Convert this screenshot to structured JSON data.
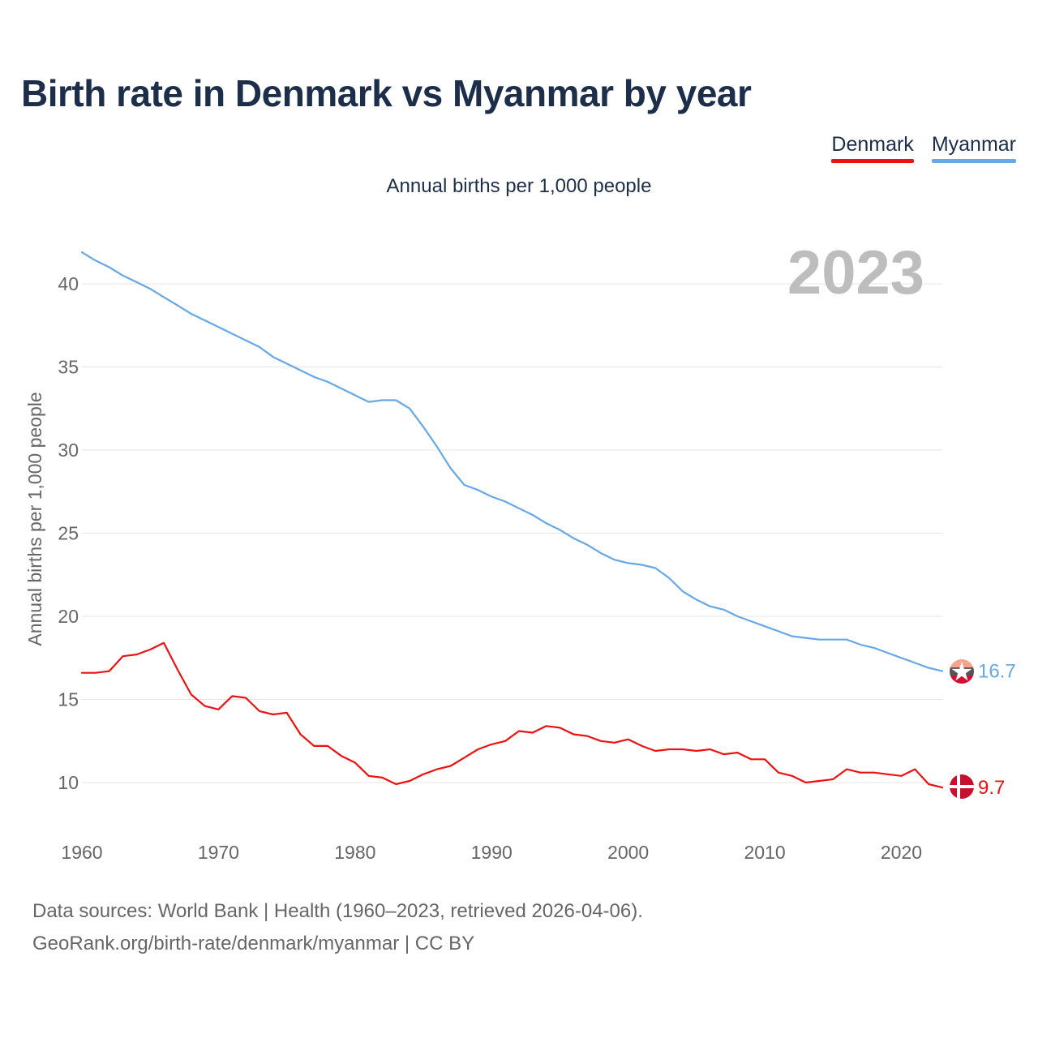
{
  "title": "Birth rate in Denmark vs Myanmar by year",
  "subtitle": "Annual births per 1,000 people",
  "legend": [
    {
      "label": "Denmark",
      "color": "#ee1111"
    },
    {
      "label": "Myanmar",
      "color": "#66a8e8"
    }
  ],
  "footer": {
    "line1": "Data sources: World Bank | Health (1960–2023, retrieved 2026-04-06).",
    "line2": "GeoRank.org/birth-rate/denmark/myanmar | CC BY"
  },
  "chart_data": {
    "type": "line",
    "title": "Birth rate in Denmark vs Myanmar by year",
    "subtitle": "Annual births per 1,000 people",
    "xlabel": "",
    "ylabel": "Annual births per 1,000 people",
    "current_year_label": "2023",
    "xlim": [
      1960,
      2023
    ],
    "ylim": [
      7.5,
      43
    ],
    "x_ticks": [
      1960,
      1970,
      1980,
      1990,
      2000,
      2010,
      2020
    ],
    "y_ticks": [
      10,
      15,
      20,
      25,
      30,
      35,
      40
    ],
    "grid": true,
    "legend_position": "top-right",
    "x": [
      1960,
      1961,
      1962,
      1963,
      1964,
      1965,
      1966,
      1967,
      1968,
      1969,
      1970,
      1971,
      1972,
      1973,
      1974,
      1975,
      1976,
      1977,
      1978,
      1979,
      1980,
      1981,
      1982,
      1983,
      1984,
      1985,
      1986,
      1987,
      1988,
      1989,
      1990,
      1991,
      1992,
      1993,
      1994,
      1995,
      1996,
      1997,
      1998,
      1999,
      2000,
      2001,
      2002,
      2003,
      2004,
      2005,
      2006,
      2007,
      2008,
      2009,
      2010,
      2011,
      2012,
      2013,
      2014,
      2015,
      2016,
      2017,
      2018,
      2019,
      2020,
      2021,
      2022,
      2023
    ],
    "series": [
      {
        "name": "Denmark",
        "color": "#ee1111",
        "end_label": "9.7",
        "flag": "denmark-flag",
        "values": [
          16.6,
          16.6,
          16.7,
          17.6,
          17.7,
          18.0,
          18.4,
          16.8,
          15.3,
          14.6,
          14.4,
          15.2,
          15.1,
          14.3,
          14.1,
          14.2,
          12.9,
          12.2,
          12.2,
          11.6,
          11.2,
          10.4,
          10.3,
          9.9,
          10.1,
          10.5,
          10.8,
          11.0,
          11.5,
          12.0,
          12.3,
          12.5,
          13.1,
          13.0,
          13.4,
          13.3,
          12.9,
          12.8,
          12.5,
          12.4,
          12.6,
          12.2,
          11.9,
          12.0,
          12.0,
          11.9,
          12.0,
          11.7,
          11.8,
          11.4,
          11.4,
          10.6,
          10.4,
          10.0,
          10.1,
          10.2,
          10.8,
          10.6,
          10.6,
          10.5,
          10.4,
          10.8,
          9.9,
          9.7
        ]
      },
      {
        "name": "Myanmar",
        "color": "#66a8e8",
        "end_label": "16.7",
        "flag": "myanmar-flag",
        "values": [
          41.9,
          41.4,
          41.0,
          40.5,
          40.1,
          39.7,
          39.2,
          38.7,
          38.2,
          37.8,
          37.4,
          37.0,
          36.6,
          36.2,
          35.6,
          35.2,
          34.8,
          34.4,
          34.1,
          33.7,
          33.3,
          32.9,
          33.0,
          33.0,
          32.5,
          31.4,
          30.2,
          28.9,
          27.9,
          27.6,
          27.2,
          26.9,
          26.5,
          26.1,
          25.6,
          25.2,
          24.7,
          24.3,
          23.8,
          23.4,
          23.2,
          23.1,
          22.9,
          22.3,
          21.5,
          21.0,
          20.6,
          20.4,
          20.0,
          19.7,
          19.4,
          19.1,
          18.8,
          18.7,
          18.6,
          18.6,
          18.6,
          18.3,
          18.1,
          17.8,
          17.5,
          17.2,
          16.9,
          16.7
        ]
      }
    ]
  }
}
